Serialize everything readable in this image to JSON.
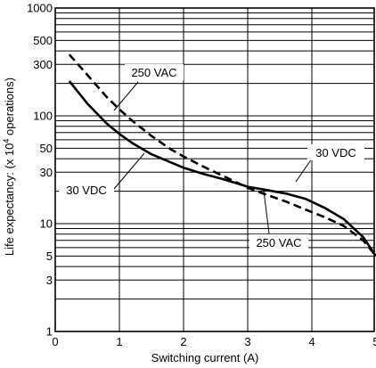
{
  "chart_data": {
    "type": "line",
    "xlabel": "Switching current (A)",
    "ylabel_prefix": "Life expectancy: (x 10",
    "ylabel_sup": "4",
    "ylabel_suffix": " operations)",
    "xlim": [
      0,
      5
    ],
    "ylim": [
      1,
      1000
    ],
    "y_scale": "log",
    "grid": true,
    "x_ticks": [
      "0",
      "1",
      "2",
      "3",
      "4",
      "5"
    ],
    "y_ticks": [
      "1",
      "3",
      "5",
      "10",
      "30",
      "50",
      "100",
      "300",
      "500",
      "1000"
    ],
    "series": [
      {
        "name": "250 VAC",
        "style": "dashed",
        "color": "#000000",
        "x": [
          0.22,
          0.5,
          0.8,
          1.0,
          1.2,
          1.5,
          1.8,
          2.0,
          2.3,
          2.6,
          2.9,
          3.0,
          3.3,
          3.6,
          3.9,
          4.2,
          4.5,
          4.8,
          5.0
        ],
        "y": [
          370,
          240,
          150,
          115,
          90,
          65,
          49,
          42,
          34,
          28,
          23,
          21.5,
          18.5,
          16,
          13.5,
          11.5,
          9.5,
          7,
          5
        ]
      },
      {
        "name": "30 VDC",
        "style": "solid",
        "color": "#000000",
        "x": [
          0.22,
          0.5,
          0.8,
          1.0,
          1.2,
          1.5,
          1.8,
          2.0,
          2.3,
          2.6,
          2.9,
          3.0,
          3.3,
          3.6,
          3.9,
          4.2,
          4.5,
          4.8,
          5.0
        ],
        "y": [
          210,
          130,
          85,
          68,
          56,
          44,
          37,
          33,
          29,
          26,
          23,
          22,
          20.5,
          19,
          17,
          14,
          11,
          7.5,
          5
        ]
      }
    ],
    "annotations": [
      {
        "text": "250 VAC",
        "series": 0
      },
      {
        "text": "30 VDC",
        "series": 1
      },
      {
        "text": "30 VDC",
        "series": 1
      },
      {
        "text": "250 VAC",
        "series": 0
      }
    ]
  }
}
